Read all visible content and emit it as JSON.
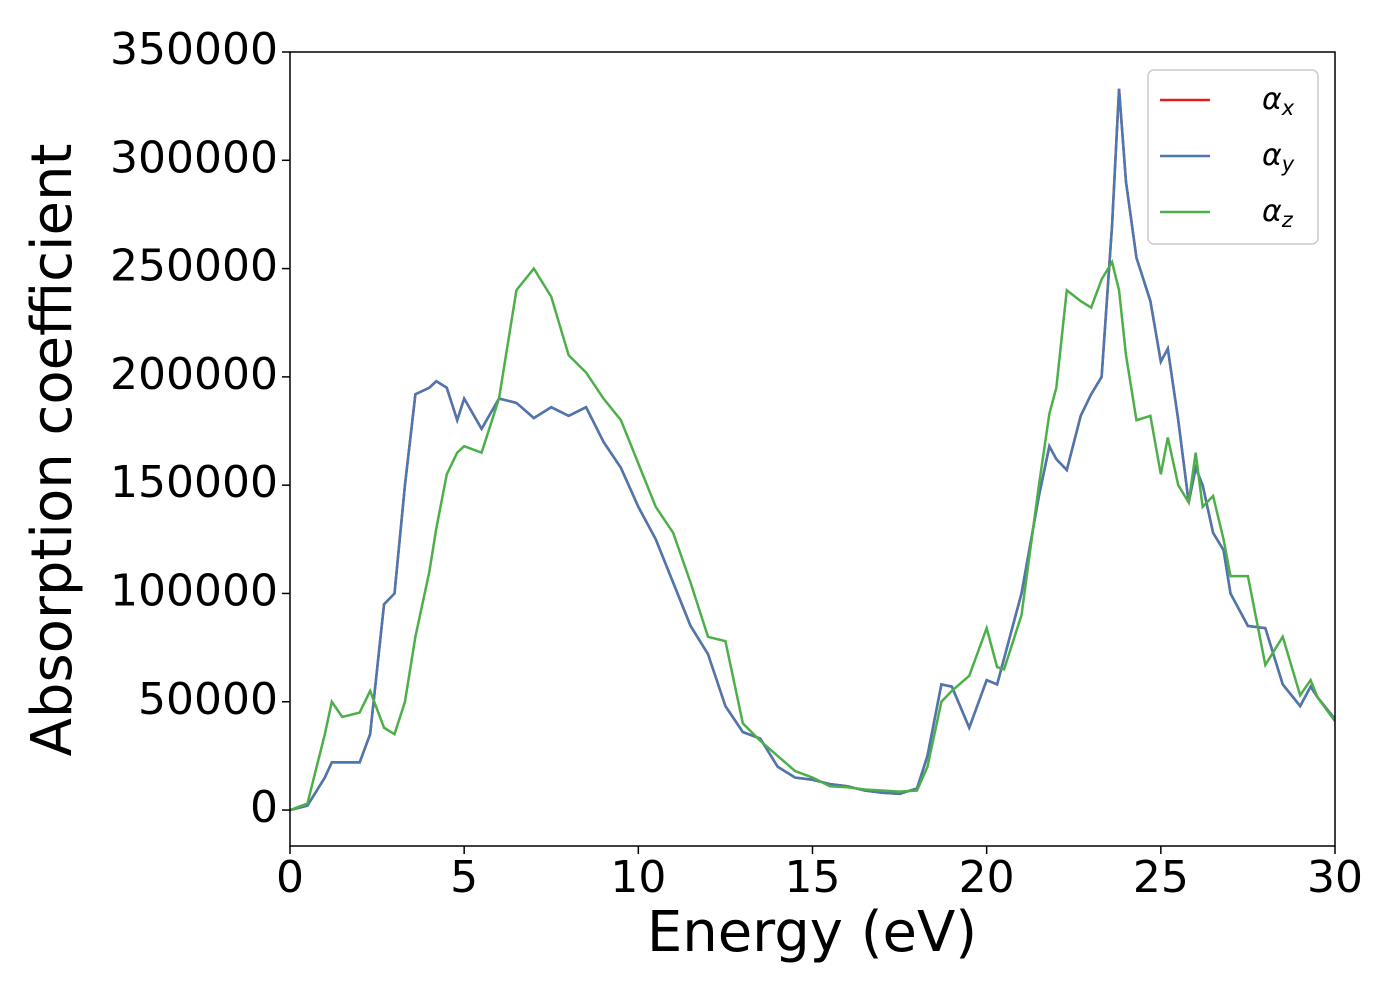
{
  "chart_data": {
    "type": "line",
    "xlabel": "Energy (eV)",
    "ylabel": "Absorption coefficient",
    "x": [
      0,
      0.5,
      1.0,
      1.2,
      1.5,
      2.0,
      2.3,
      2.7,
      3.0,
      3.3,
      3.6,
      4.0,
      4.2,
      4.5,
      4.8,
      5.0,
      5.5,
      6.0,
      6.5,
      7.0,
      7.5,
      8.0,
      8.5,
      9.0,
      9.5,
      10.0,
      10.5,
      11.0,
      11.5,
      12.0,
      12.5,
      13.0,
      13.5,
      14.0,
      14.5,
      15.0,
      15.5,
      16.0,
      16.5,
      17.0,
      17.5,
      18.0,
      18.3,
      18.7,
      19.0,
      19.5,
      20.0,
      20.3,
      20.5,
      21.0,
      21.5,
      21.8,
      22.0,
      22.3,
      22.7,
      23.0,
      23.3,
      23.6,
      23.8,
      24.0,
      24.3,
      24.7,
      25.0,
      25.2,
      25.5,
      25.8,
      26.0,
      26.2,
      26.5,
      26.8,
      27.0,
      27.5,
      28.0,
      28.5,
      29.0,
      29.3,
      29.5,
      30.0
    ],
    "series": [
      {
        "name": "αx",
        "color": "#e41a1c",
        "values": [
          0,
          2000,
          15000,
          22000,
          22000,
          22000,
          35000,
          95000,
          100000,
          150000,
          192000,
          195000,
          198000,
          195000,
          180000,
          190000,
          176000,
          190000,
          188000,
          181000,
          186000,
          182000,
          186000,
          170000,
          158000,
          140000,
          125000,
          105000,
          85000,
          72000,
          48000,
          36000,
          33000,
          20000,
          15000,
          14000,
          12000,
          11000,
          9000,
          8000,
          7500,
          10000,
          25000,
          58000,
          57000,
          38000,
          60000,
          58000,
          70000,
          100000,
          145000,
          168000,
          162000,
          157000,
          182000,
          192000,
          200000,
          270000,
          333000,
          290000,
          255000,
          235000,
          207000,
          213000,
          180000,
          142000,
          158000,
          150000,
          128000,
          120000,
          100000,
          85000,
          84000,
          58000,
          48000,
          57000,
          52000,
          42000
        ]
      },
      {
        "name": "αy",
        "color": "#4a78b0",
        "values": [
          0,
          2000,
          15000,
          22000,
          22000,
          22000,
          35000,
          95000,
          100000,
          150000,
          192000,
          195000,
          198000,
          195000,
          180000,
          190000,
          176000,
          190000,
          188000,
          181000,
          186000,
          182000,
          186000,
          170000,
          158000,
          140000,
          125000,
          105000,
          85000,
          72000,
          48000,
          36000,
          33000,
          20000,
          15000,
          14000,
          12000,
          11000,
          9000,
          8000,
          7500,
          10000,
          25000,
          58000,
          57000,
          38000,
          60000,
          58000,
          70000,
          100000,
          145000,
          168000,
          162000,
          157000,
          182000,
          192000,
          200000,
          270000,
          333000,
          290000,
          255000,
          235000,
          207000,
          213000,
          180000,
          142000,
          158000,
          150000,
          128000,
          120000,
          100000,
          85000,
          84000,
          58000,
          48000,
          57000,
          52000,
          42000
        ]
      },
      {
        "name": "αz",
        "color": "#4daf4a",
        "values": [
          0,
          3000,
          35000,
          50000,
          43000,
          45000,
          55000,
          38000,
          35000,
          50000,
          80000,
          110000,
          130000,
          155000,
          165000,
          168000,
          165000,
          190000,
          240000,
          250000,
          237000,
          210000,
          202000,
          190000,
          180000,
          160000,
          140000,
          128000,
          105000,
          80000,
          78000,
          40000,
          32000,
          25000,
          18000,
          15000,
          11000,
          10500,
          9500,
          9000,
          8500,
          9000,
          20000,
          50000,
          55000,
          62000,
          84000,
          66000,
          65000,
          90000,
          150000,
          183000,
          195000,
          240000,
          235000,
          232000,
          245000,
          253000,
          240000,
          210000,
          180000,
          182000,
          155000,
          172000,
          150000,
          142000,
          165000,
          140000,
          145000,
          125000,
          108000,
          108000,
          67000,
          80000,
          53000,
          60000,
          52000,
          41000
        ]
      }
    ],
    "xlim": [
      0,
      30
    ],
    "xticks": [
      0,
      5,
      10,
      15,
      20,
      25,
      30
    ],
    "ylim": [
      -16600,
      350000
    ],
    "yticks": [
      0,
      50000,
      100000,
      150000,
      200000,
      250000,
      300000,
      350000
    ],
    "legend": "upper right"
  }
}
